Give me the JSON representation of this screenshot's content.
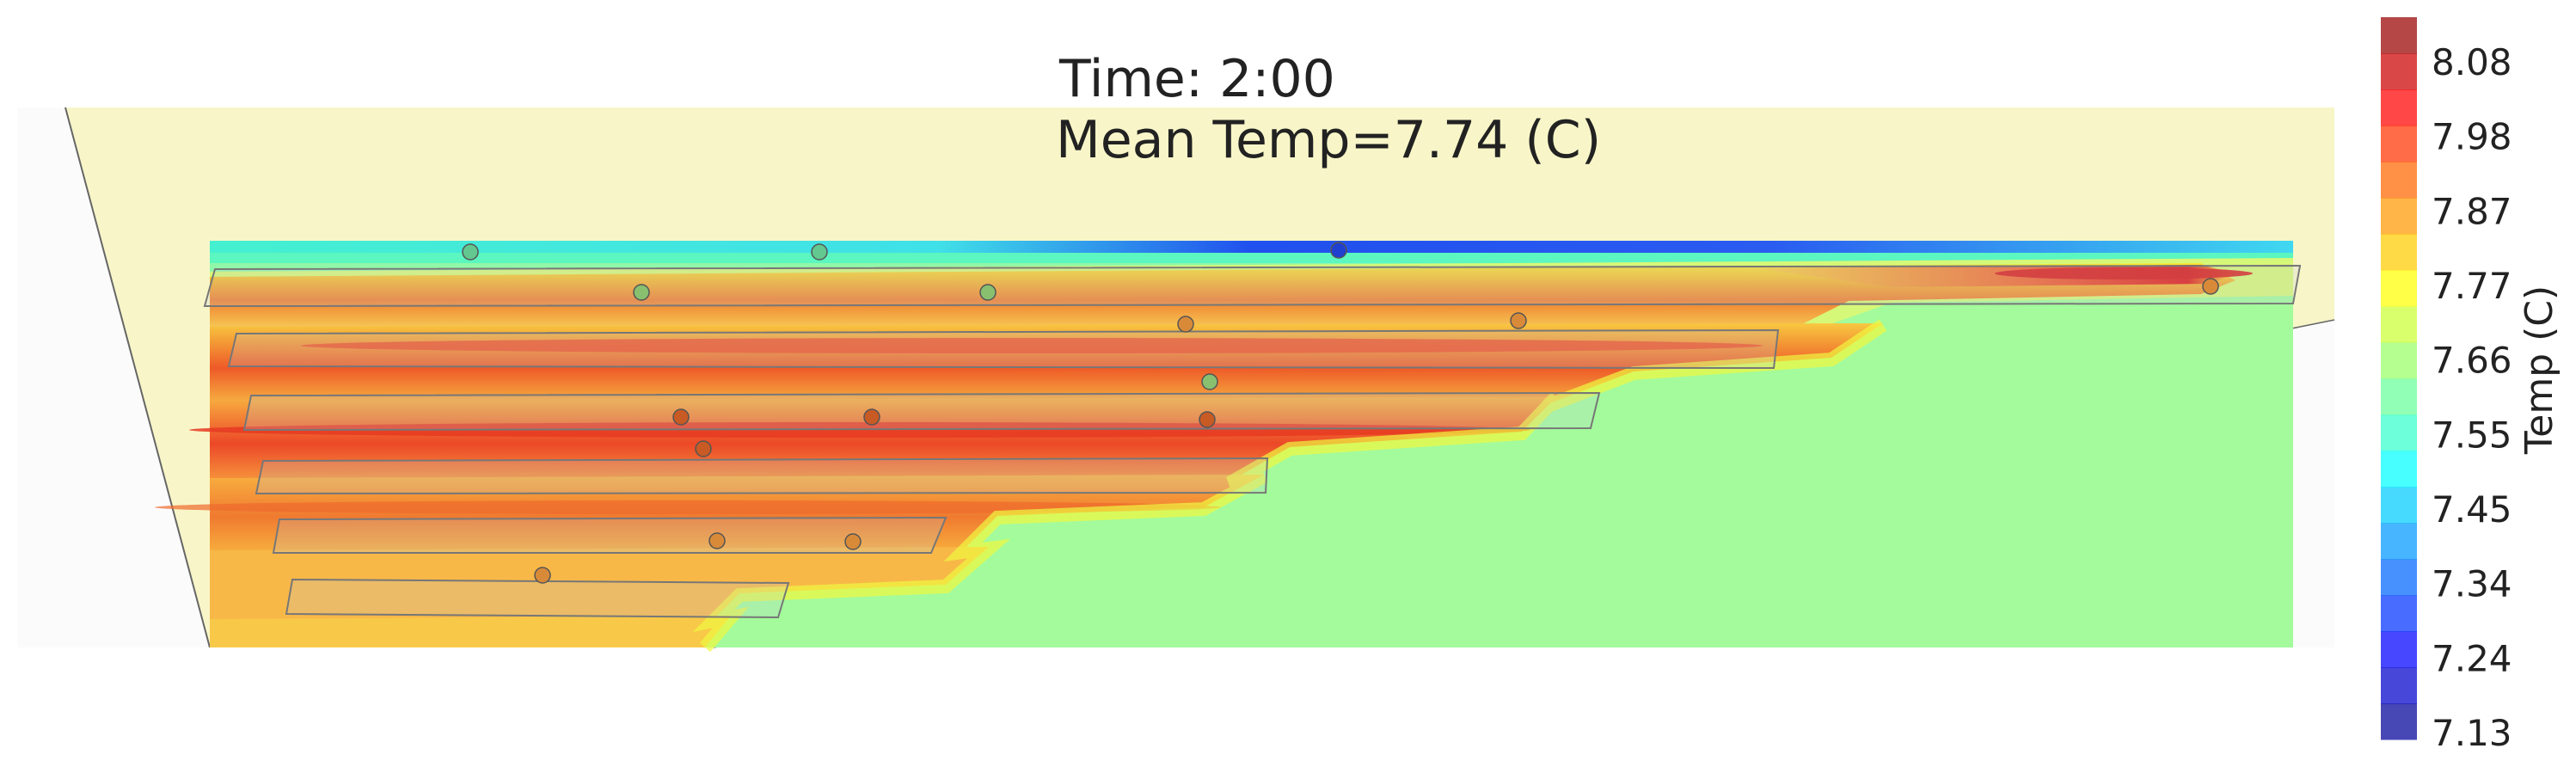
{
  "chart_data": {
    "type": "heatmap",
    "title_lines": [
      "Time: 2:00",
      "Mean Temp=7.74 (C)"
    ],
    "time": "2:00",
    "mean_temp_c": 7.74,
    "colorbar": {
      "label": "Temp (C)",
      "min": 7.13,
      "max": 8.13,
      "ticks": [
        "8.08",
        "7.98",
        "7.87",
        "7.77",
        "7.66",
        "7.55",
        "7.45",
        "7.34",
        "7.24",
        "7.13"
      ],
      "colormap": "jet",
      "levels": 20
    },
    "colors": {
      "background_plane": "#f8f6c8",
      "baseline_green": "#a3fb9c",
      "cold_edge": "#1a2ee6",
      "hot_core": "#e82020"
    }
  }
}
